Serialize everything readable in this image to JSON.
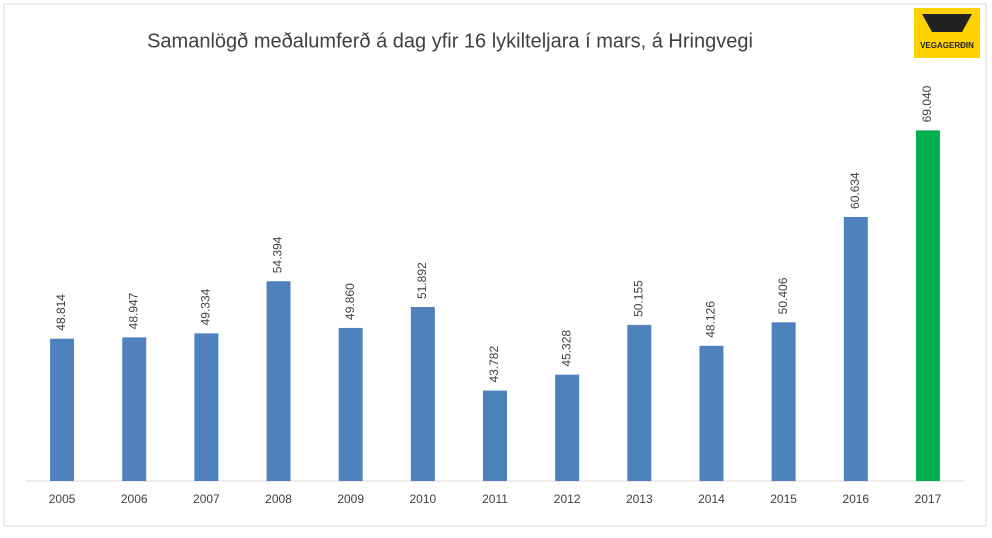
{
  "chart_data": {
    "type": "bar",
    "title": "Samanlögð meðalumferð á dag yfir 16 lykilteljara í mars, á Hringvegi",
    "logo": "VEGAGERÐIN",
    "categories": [
      "2005",
      "2006",
      "2007",
      "2008",
      "2009",
      "2010",
      "2011",
      "2012",
      "2013",
      "2014",
      "2015",
      "2016",
      "2017"
    ],
    "values": [
      48814,
      48947,
      49334,
      54394,
      49860,
      51892,
      43782,
      45328,
      50155,
      48126,
      50406,
      60634,
      69040
    ],
    "value_labels": [
      "48.814",
      "48.947",
      "49.334",
      "54.394",
      "49.860",
      "51.892",
      "43.782",
      "45.328",
      "50.155",
      "48.126",
      "50.406",
      "60.634",
      "69.040"
    ],
    "colors": [
      "#4f81bd",
      "#4f81bd",
      "#4f81bd",
      "#4f81bd",
      "#4f81bd",
      "#4f81bd",
      "#4f81bd",
      "#4f81bd",
      "#4f81bd",
      "#4f81bd",
      "#4f81bd",
      "#4f81bd",
      "#00b050"
    ],
    "ylim": [
      35000,
      75000
    ]
  }
}
